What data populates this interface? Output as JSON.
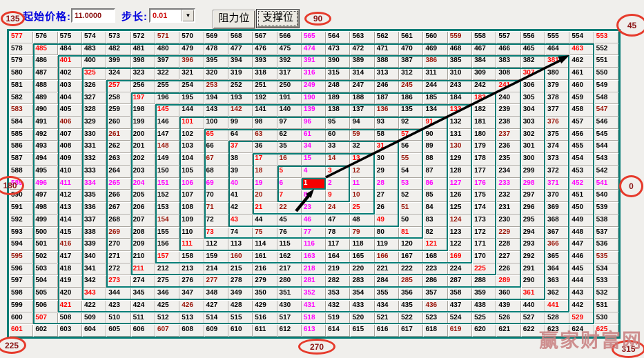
{
  "toolbar": {
    "start_price_label": "起始价格:",
    "start_price_value": "11.0000",
    "step_label": "步长:",
    "step_value": "0.01",
    "resistance_button": "阻力位",
    "support_button": "支撑位",
    "dropdown_arrow_icon": "▼"
  },
  "angle_labels": {
    "top_left": "135",
    "top_center": "90",
    "top_right": "45",
    "middle_left": "180",
    "middle_right": "0",
    "bottom_left": "225",
    "bottom_center": "270",
    "bottom_right": "315"
  },
  "watermark": "赢家财富网",
  "colors": {
    "diagonal_red": "#ff0000",
    "cardinal_magenta": "#ff00ff",
    "half_angle_dark_red": "#991408",
    "ring_border_teal": "#077d76",
    "center_cell_bg": "#f60000",
    "label_blue": "#0000dd",
    "input_text_dark_red": "#8b1111",
    "step_text_red": "#cc1111",
    "angle_circle_red": "#e63a2b",
    "angle_text_dark_red": "#8b1616"
  },
  "gann_square": {
    "size": 25,
    "center_value": 1,
    "rows": [
      [
        577,
        576,
        575,
        574,
        573,
        572,
        571,
        570,
        569,
        568,
        567,
        566,
        565,
        564,
        563,
        562,
        561,
        560,
        559,
        558,
        557,
        556,
        555,
        554,
        553
      ],
      [
        578,
        485,
        484,
        483,
        482,
        481,
        480,
        479,
        478,
        477,
        476,
        475,
        474,
        473,
        472,
        471,
        470,
        469,
        468,
        467,
        466,
        465,
        464,
        463,
        552
      ],
      [
        579,
        486,
        401,
        400,
        399,
        398,
        397,
        396,
        395,
        394,
        393,
        392,
        391,
        390,
        389,
        388,
        387,
        386,
        385,
        384,
        383,
        382,
        381,
        462,
        551
      ],
      [
        580,
        487,
        402,
        325,
        324,
        323,
        322,
        321,
        320,
        319,
        318,
        317,
        316,
        315,
        314,
        313,
        312,
        311,
        310,
        309,
        308,
        307,
        380,
        461,
        550
      ],
      [
        581,
        488,
        403,
        326,
        257,
        256,
        255,
        254,
        253,
        252,
        251,
        250,
        249,
        248,
        247,
        246,
        245,
        244,
        243,
        242,
        241,
        306,
        379,
        460,
        549
      ],
      [
        582,
        489,
        404,
        327,
        258,
        197,
        196,
        195,
        194,
        193,
        192,
        191,
        190,
        189,
        188,
        187,
        186,
        185,
        184,
        183,
        240,
        305,
        378,
        459,
        548
      ],
      [
        583,
        490,
        405,
        328,
        259,
        198,
        145,
        144,
        143,
        142,
        141,
        140,
        139,
        138,
        137,
        136,
        135,
        134,
        133,
        182,
        239,
        304,
        377,
        458,
        547
      ],
      [
        584,
        491,
        406,
        329,
        260,
        199,
        146,
        101,
        100,
        99,
        98,
        97,
        96,
        95,
        94,
        93,
        92,
        91,
        132,
        181,
        238,
        303,
        376,
        457,
        546
      ],
      [
        585,
        492,
        407,
        330,
        261,
        200,
        147,
        102,
        65,
        64,
        63,
        62,
        61,
        60,
        59,
        58,
        57,
        90,
        131,
        180,
        237,
        302,
        375,
        456,
        545
      ],
      [
        586,
        493,
        408,
        331,
        262,
        201,
        148,
        103,
        66,
        37,
        36,
        35,
        34,
        33,
        32,
        31,
        56,
        89,
        130,
        179,
        236,
        301,
        374,
        455,
        544
      ],
      [
        587,
        494,
        409,
        332,
        263,
        202,
        149,
        104,
        67,
        38,
        17,
        16,
        15,
        14,
        13,
        30,
        55,
        88,
        129,
        178,
        235,
        300,
        373,
        454,
        543
      ],
      [
        588,
        495,
        410,
        333,
        264,
        203,
        150,
        105,
        68,
        39,
        18,
        5,
        4,
        3,
        12,
        29,
        54,
        87,
        128,
        177,
        234,
        299,
        372,
        453,
        542
      ],
      [
        589,
        496,
        411,
        334,
        265,
        204,
        151,
        106,
        69,
        40,
        19,
        6,
        1,
        2,
        11,
        28,
        53,
        86,
        127,
        176,
        233,
        298,
        371,
        452,
        541
      ],
      [
        590,
        497,
        412,
        335,
        266,
        205,
        152,
        107,
        70,
        41,
        20,
        7,
        8,
        9,
        10,
        27,
        52,
        85,
        126,
        175,
        232,
        297,
        370,
        451,
        540
      ],
      [
        591,
        498,
        413,
        336,
        267,
        206,
        153,
        108,
        71,
        42,
        21,
        22,
        23,
        24,
        25,
        26,
        51,
        84,
        125,
        174,
        231,
        296,
        369,
        450,
        539
      ],
      [
        592,
        499,
        414,
        337,
        268,
        207,
        154,
        109,
        72,
        43,
        44,
        45,
        46,
        47,
        48,
        49,
        50,
        83,
        124,
        173,
        230,
        295,
        368,
        449,
        538
      ],
      [
        593,
        500,
        415,
        338,
        269,
        208,
        155,
        110,
        73,
        74,
        75,
        76,
        77,
        78,
        79,
        80,
        81,
        82,
        123,
        172,
        229,
        294,
        367,
        448,
        537
      ],
      [
        594,
        501,
        416,
        339,
        270,
        209,
        156,
        111,
        112,
        113,
        114,
        115,
        116,
        117,
        118,
        119,
        120,
        121,
        122,
        171,
        228,
        293,
        366,
        447,
        536
      ],
      [
        595,
        502,
        417,
        340,
        271,
        210,
        157,
        158,
        159,
        160,
        161,
        162,
        163,
        164,
        165,
        166,
        167,
        168,
        169,
        170,
        227,
        292,
        365,
        446,
        535
      ],
      [
        596,
        503,
        418,
        341,
        272,
        211,
        212,
        213,
        214,
        215,
        216,
        217,
        218,
        219,
        220,
        221,
        222,
        223,
        224,
        225,
        226,
        291,
        364,
        445,
        534
      ],
      [
        597,
        504,
        419,
        342,
        273,
        274,
        275,
        276,
        277,
        278,
        279,
        280,
        281,
        282,
        283,
        284,
        285,
        286,
        287,
        288,
        289,
        290,
        363,
        444,
        533
      ],
      [
        598,
        505,
        420,
        343,
        344,
        345,
        346,
        347,
        348,
        349,
        350,
        351,
        352,
        353,
        354,
        355,
        356,
        357,
        358,
        359,
        360,
        361,
        362,
        443,
        532
      ],
      [
        599,
        506,
        421,
        422,
        423,
        424,
        425,
        426,
        427,
        428,
        429,
        430,
        431,
        432,
        433,
        434,
        435,
        436,
        437,
        438,
        439,
        440,
        441,
        442,
        531
      ],
      [
        600,
        507,
        508,
        509,
        510,
        511,
        512,
        513,
        514,
        515,
        516,
        517,
        518,
        519,
        520,
        521,
        522,
        523,
        524,
        525,
        526,
        527,
        528,
        529,
        530
      ],
      [
        601,
        602,
        603,
        604,
        605,
        606,
        607,
        608,
        609,
        610,
        611,
        612,
        613,
        614,
        615,
        616,
        617,
        618,
        619,
        620,
        621,
        622,
        623,
        624,
        625
      ]
    ]
  }
}
